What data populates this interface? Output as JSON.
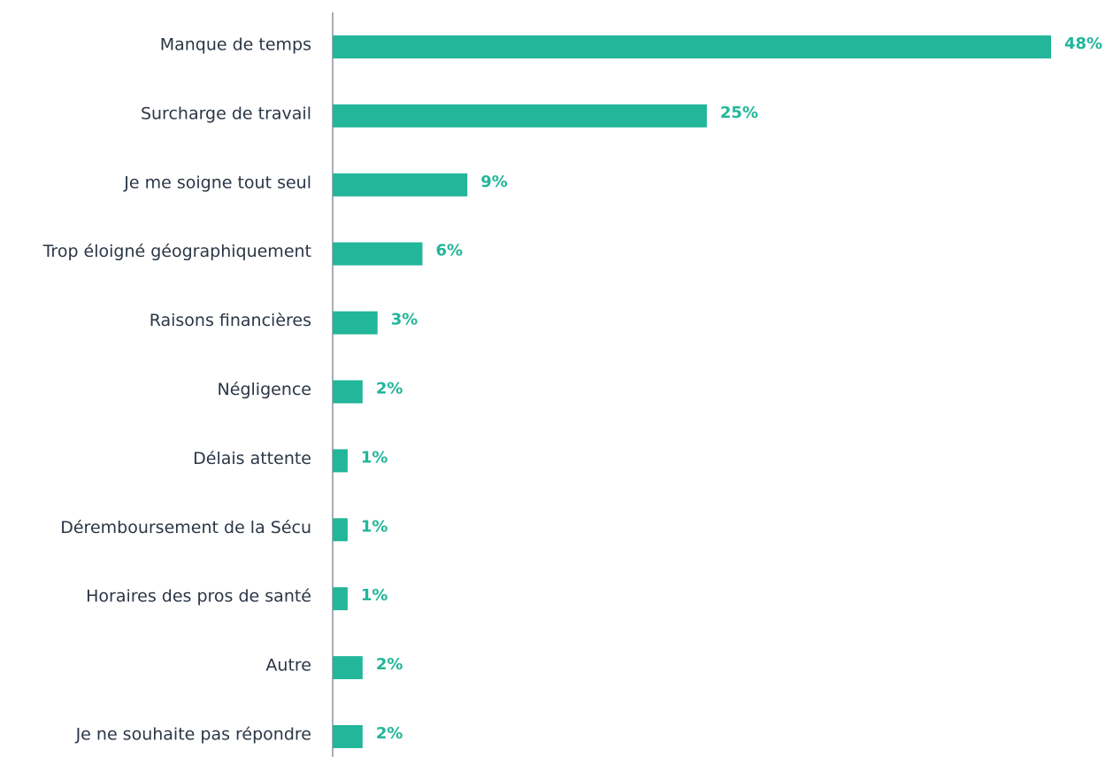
{
  "chart_data": {
    "type": "bar",
    "orientation": "horizontal",
    "categories": [
      "Manque de temps",
      "Surcharge de travail",
      "Je me soigne tout seul",
      "Trop éloigné géographiquement",
      "Raisons financières",
      "Négligence",
      "Délais attente",
      "Déremboursement de la Sécu",
      "Horaires des pros de santé",
      "Autre",
      "Je ne souhaite pas répondre"
    ],
    "values": [
      48,
      25,
      9,
      6,
      3,
      2,
      1,
      1,
      1,
      2,
      2
    ],
    "value_labels": [
      "48%",
      "25%",
      "9%",
      "6%",
      "3%",
      "2%",
      "1%",
      "1%",
      "1%",
      "2%",
      "2%"
    ],
    "color": "#22b69a"
  }
}
